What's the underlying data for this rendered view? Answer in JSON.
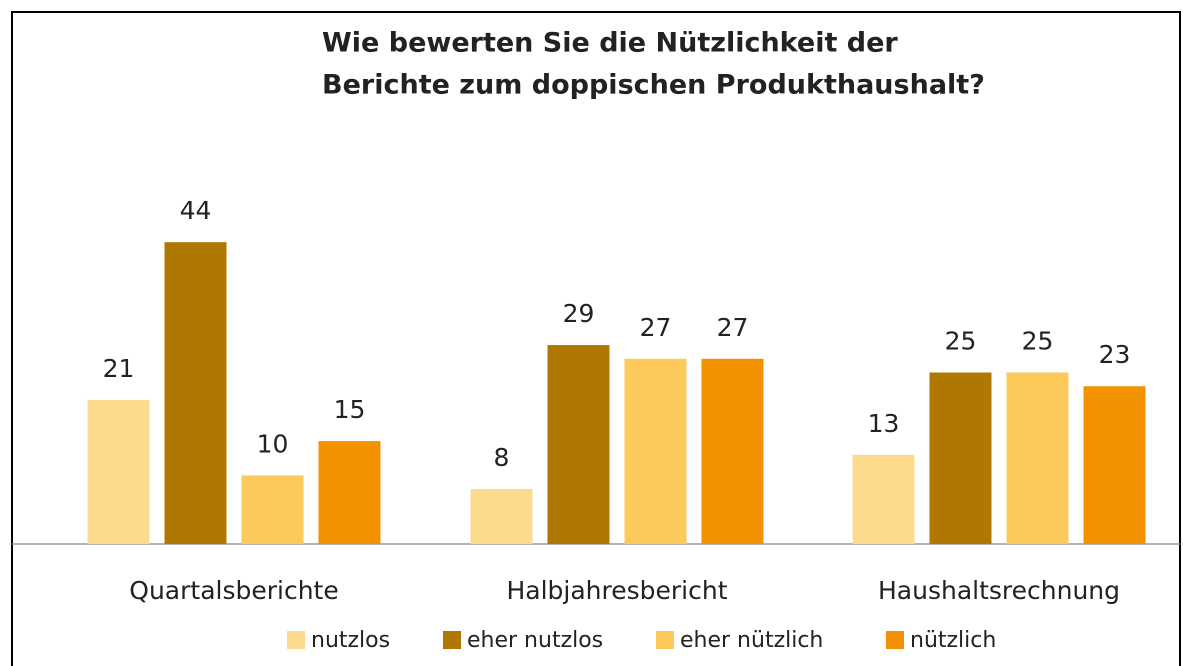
{
  "chart_data": {
    "type": "bar",
    "title": [
      "Wie bewerten Sie die Nützlichkeit der",
      "Berichte zum doppischen Produkthaushalt?"
    ],
    "categories": [
      "Quartalsberichte",
      "Halbjahresbericht",
      "Haushaltsrechnung"
    ],
    "series": [
      {
        "name": "nutzlos",
        "color": "#fddb8e",
        "values": [
          21,
          8,
          13
        ]
      },
      {
        "name": "eher nutzlos",
        "color": "#b07800",
        "values": [
          44,
          29,
          25
        ]
      },
      {
        "name": "eher nützlich",
        "color": "#fdc95a",
        "values": [
          10,
          27,
          25
        ]
      },
      {
        "name": "nützlich",
        "color": "#f39200",
        "values": [
          15,
          27,
          23
        ]
      }
    ],
    "ylim": [
      0,
      50
    ],
    "legend": "bottom"
  }
}
